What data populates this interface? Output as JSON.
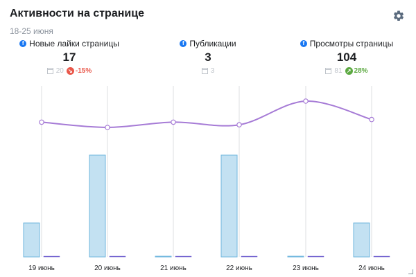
{
  "header": {
    "title": "Активности на странице",
    "date_range": "18-25 июня"
  },
  "icons": {
    "settings": "gear-icon",
    "facebook": "facebook-icon",
    "calendar": "calendar-icon"
  },
  "colors": {
    "bars": "#c3e1f2",
    "bar_border": "#6fb6de",
    "line": "#a67bd6",
    "negative": "#e9584b",
    "positive": "#5ca941",
    "gridlines": "#dddfe2"
  },
  "metrics": [
    {
      "label": "Новые лайки страницы",
      "value": "17",
      "previous": "20",
      "change": "-15%"
    },
    {
      "label": "Публикации",
      "value": "3",
      "previous": "3",
      "change": ""
    },
    {
      "label": "Просмотры страницы",
      "value": "104",
      "previous": "81",
      "change": "28%"
    }
  ],
  "chart_data": {
    "type": "bar",
    "categories": [
      "19 июнь",
      "20 июнь",
      "21 июнь",
      "22 июнь",
      "23 июнь",
      "24 июнь"
    ],
    "series": [
      {
        "type": "bar",
        "values": [
          1,
          3,
          0,
          3,
          0,
          1
        ]
      },
      {
        "type": "bar",
        "values": [
          0,
          0,
          0,
          0,
          0,
          0
        ]
      },
      {
        "type": "line",
        "values": [
          16,
          15,
          16,
          15.5,
          20,
          16.5
        ]
      }
    ],
    "grid": true,
    "legend": "none"
  }
}
